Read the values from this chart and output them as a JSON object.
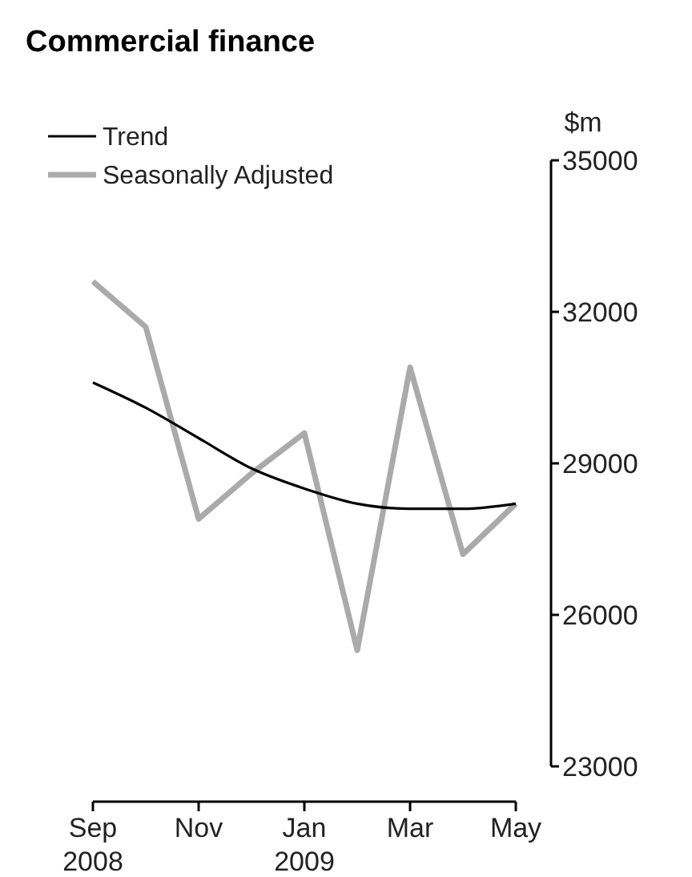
{
  "chart_data": {
    "type": "line",
    "title": "Commercial finance",
    "ylabel": "$m",
    "categories": [
      "Sep\n2008",
      null,
      "Nov",
      null,
      "Jan\n2009",
      null,
      "Mar",
      null,
      "May"
    ],
    "series": [
      {
        "name": "Trend",
        "color": "#000000",
        "values": [
          30600,
          30100,
          29500,
          28900,
          28500,
          28200,
          28100,
          28100,
          28200
        ]
      },
      {
        "name": "Seasonally Adjusted",
        "color": "#aaaaaa",
        "values": [
          32600,
          31700,
          27900,
          28800,
          29600,
          25300,
          30900,
          27200,
          28200
        ]
      }
    ],
    "ylim": [
      23000,
      35000
    ],
    "yticks": [
      23000,
      26000,
      29000,
      32000,
      35000
    ],
    "legend": "top left",
    "grid": false,
    "line_style": "solid",
    "marker": "none"
  }
}
